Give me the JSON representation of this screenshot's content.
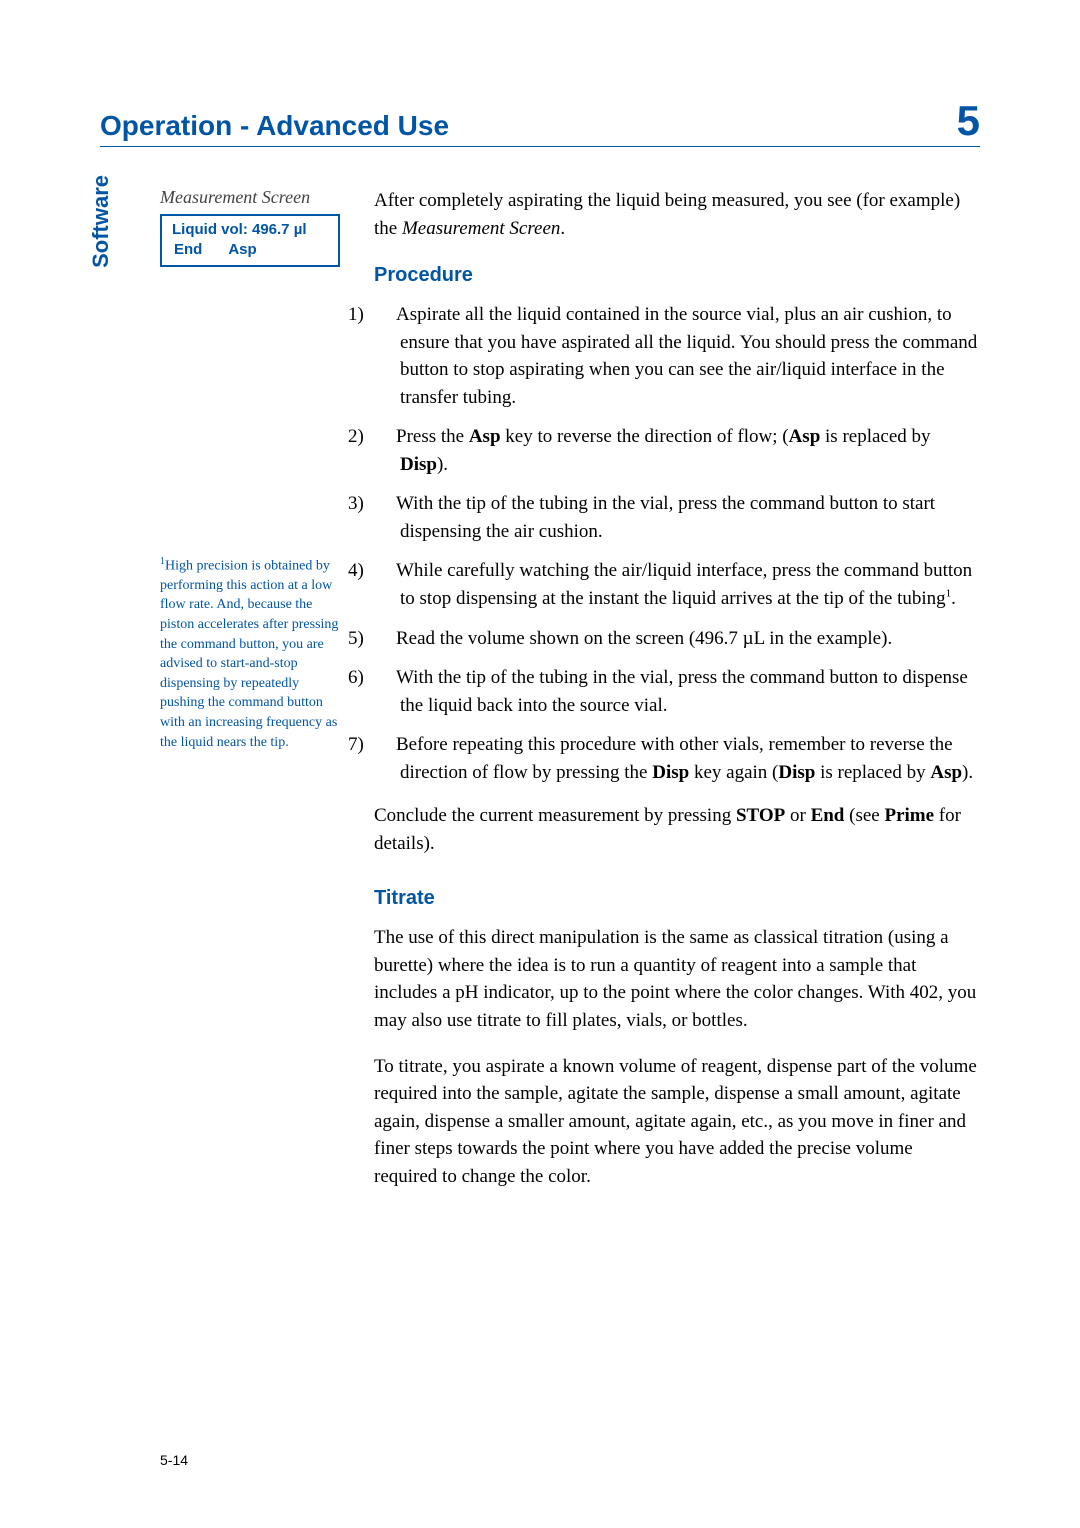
{
  "header": {
    "title": "Operation - Advanced Use",
    "chapter_number": "5"
  },
  "side_tab": "Software",
  "left": {
    "screen_caption": "Measurement Screen",
    "screen_line1": "Liquid vol: 496.7 µl",
    "screen_btn1": "End",
    "screen_btn2": "Asp",
    "footnote_marker": "1",
    "footnote_text": "High precision is obtained by performing this action at a low flow rate. And, because the piston accelerates after pressing the command button, you are advised to start-and-stop dispensing by repeatedly pushing the command button with an increasing frequency as the liquid nears the tip."
  },
  "right": {
    "intro_a": "After completely aspirating the liquid being measured, you see (for example) the ",
    "intro_em": "Measurement Screen",
    "intro_b": ".",
    "procedure_heading": "Procedure",
    "steps": {
      "s1": "Aspirate all the liquid contained in the source vial, plus an air cushion, to ensure that you have aspirated all the liquid. You should press the command button to stop aspirating when you can see the air/liquid interface in the transfer tubing.",
      "s2a": "Press the ",
      "s2b": "Asp",
      "s2c": " key to reverse the direction of flow; (",
      "s2d": "Asp",
      "s2e": " is replaced by ",
      "s2f": "Disp",
      "s2g": ").",
      "s3": "With the tip of the tubing in the vial, press the command button to start dispensing the air cushion.",
      "s4a": "While carefully watching the air/liquid interface, press the command button to stop dispensing at the instant the liquid arrives at the tip of the tubing",
      "s4b": ".",
      "s5": "Read the volume shown on the screen (496.7 µL in the example).",
      "s6": "With the tip of the tubing in the vial, press the command button to dispense the liquid back into the source vial.",
      "s7a": "Before repeating this procedure with other vials, remember to reverse the direction of flow by pressing the ",
      "s7b": "Disp",
      "s7c": " key again (",
      "s7d": "Disp",
      "s7e": " is replaced by ",
      "s7f": "Asp",
      "s7g": ")."
    },
    "conclude_a": "Conclude the current measurement by pressing ",
    "conclude_b": "STOP",
    "conclude_c": " or ",
    "conclude_d": "End",
    "conclude_e": " (see ",
    "conclude_f": "Prime",
    "conclude_g": " for details).",
    "titrate_heading": "Titrate",
    "titrate_p1": "The use of this direct manipulation is the same as classical titration (using a burette) where the idea is to run a quantity of reagent into a sample that includes a pH indicator, up to the point where the color changes. With 402, you may also use titrate to fill plates, vials, or bottles.",
    "titrate_p2": "To titrate, you aspirate a known volume of reagent, dispense part of the volume required into the sample, agitate the sample, dispense a small amount, agitate again, dispense a smaller amount, agitate again, etc., as you move in finer and finer steps towards the point where you have added the precise volume required to change the color."
  },
  "page_number": "5-14",
  "colors": {
    "accent": "#0055a5",
    "text": "#000000",
    "bg": "#ffffff"
  }
}
